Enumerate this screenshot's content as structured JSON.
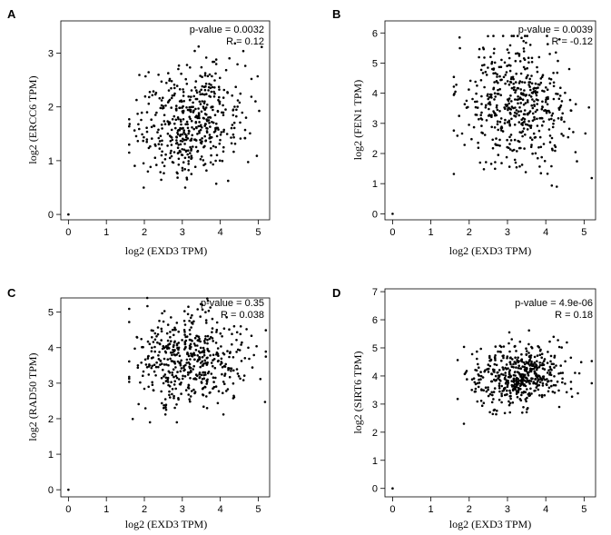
{
  "chart_data": [
    {
      "panel": "A",
      "type": "scatter",
      "xlabel": "log2 (EXD3 TPM)",
      "ylabel": "log2 (ERCC6 TPM)",
      "xlim": [
        -0.2,
        5.3
      ],
      "ylim": [
        -0.1,
        3.6
      ],
      "xticks": [
        0,
        1,
        2,
        3,
        4,
        5
      ],
      "yticks": [
        0,
        1,
        2,
        3
      ],
      "annotation": [
        "p-value = 0.0032",
        "R = 0.12"
      ],
      "cloud": {
        "n": 500,
        "x_mean": 3.2,
        "x_sd": 0.7,
        "x_range": [
          1.6,
          5.2
        ],
        "y_mean": 1.75,
        "y_sd": 0.5,
        "y_range": [
          0.5,
          3.6
        ],
        "r": 0.12
      },
      "outliers": [
        [
          0,
          0
        ]
      ]
    },
    {
      "panel": "B",
      "type": "scatter",
      "xlabel": "log2 (EXD3 TPM)",
      "ylabel": "log2 (FEN1 TPM)",
      "xlim": [
        -0.2,
        5.3
      ],
      "ylim": [
        -0.2,
        6.4
      ],
      "xticks": [
        0,
        1,
        2,
        3,
        4,
        5
      ],
      "yticks": [
        0,
        1,
        2,
        3,
        4,
        5,
        6
      ],
      "annotation": [
        "p-value = 0.0039",
        "R = -0.12"
      ],
      "cloud": {
        "n": 500,
        "x_mean": 3.2,
        "x_sd": 0.7,
        "x_range": [
          1.6,
          5.2
        ],
        "y_mean": 3.6,
        "y_sd": 1.0,
        "y_range": [
          0.9,
          5.9
        ],
        "r": -0.12
      },
      "outliers": [
        [
          0,
          0
        ]
      ]
    },
    {
      "panel": "C",
      "type": "scatter",
      "xlabel": "log2 (EXD3 TPM)",
      "ylabel": "log2 (RAD50 TPM)",
      "xlim": [
        -0.2,
        5.3
      ],
      "ylim": [
        -0.2,
        5.4
      ],
      "xticks": [
        0,
        1,
        2,
        3,
        4,
        5
      ],
      "yticks": [
        0,
        1,
        2,
        3,
        4,
        5
      ],
      "annotation": [
        "p-value = 0.35",
        "R = 0.038"
      ],
      "cloud": {
        "n": 500,
        "x_mean": 3.2,
        "x_sd": 0.7,
        "x_range": [
          1.6,
          5.2
        ],
        "y_mean": 3.7,
        "y_sd": 0.65,
        "y_range": [
          1.9,
          5.4
        ],
        "r": 0.038
      },
      "outliers": [
        [
          0,
          0
        ]
      ]
    },
    {
      "panel": "D",
      "type": "scatter",
      "xlabel": "log2 (EXD3 TPM)",
      "ylabel": "log2 (SIRT6 TPM)",
      "xlim": [
        -0.2,
        5.3
      ],
      "ylim": [
        -0.3,
        7.1
      ],
      "xticks": [
        0,
        1,
        2,
        3,
        4,
        5
      ],
      "yticks": [
        0,
        1,
        2,
        3,
        4,
        5,
        6,
        7
      ],
      "annotation": [
        "p-value = 4.9e-06",
        "R = 0.18"
      ],
      "cloud": {
        "n": 500,
        "x_mean": 3.3,
        "x_sd": 0.65,
        "x_range": [
          1.7,
          5.2
        ],
        "y_mean": 4.0,
        "y_sd": 0.55,
        "y_range": [
          2.3,
          5.8
        ],
        "r": 0.18
      },
      "outliers": [
        [
          0,
          0
        ]
      ]
    }
  ]
}
